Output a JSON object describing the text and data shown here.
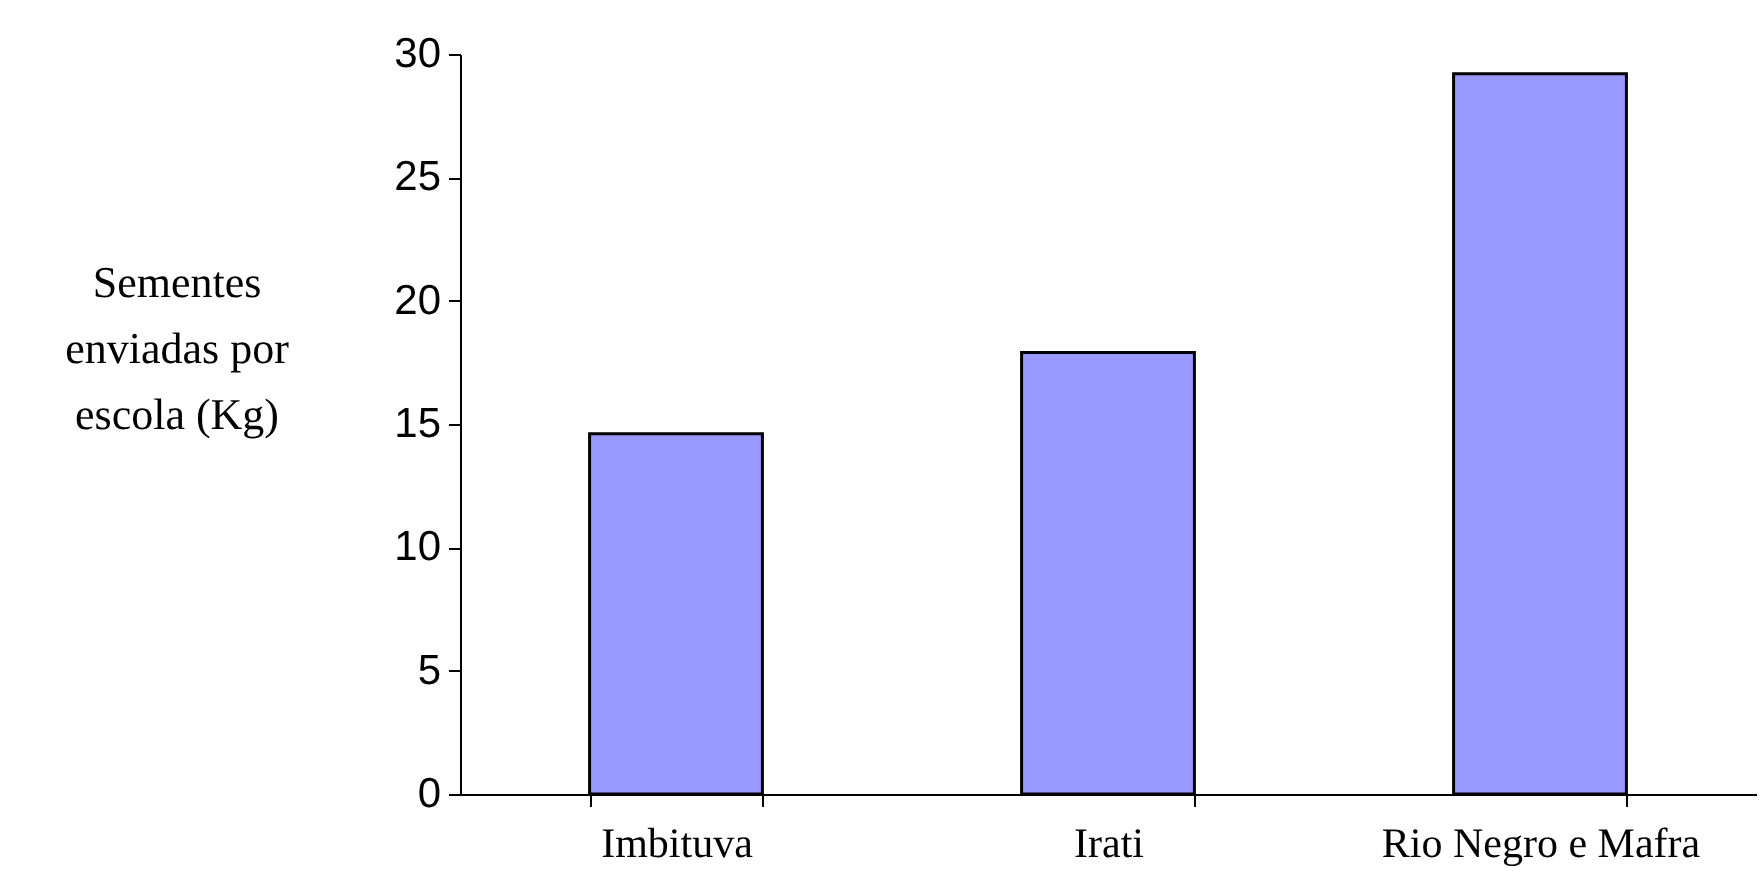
{
  "chart_data": {
    "type": "bar",
    "ylabel": "Sementes enviadas por escola (Kg)",
    "categories": [
      "Imbituva",
      "Irati",
      "Rio Negro e Mafra"
    ],
    "values": [
      14.6,
      17.9,
      29.2
    ],
    "color": "#9999ff",
    "ylim": [
      0,
      30
    ],
    "yticks": [
      0,
      5,
      10,
      15,
      20,
      25,
      30
    ]
  }
}
